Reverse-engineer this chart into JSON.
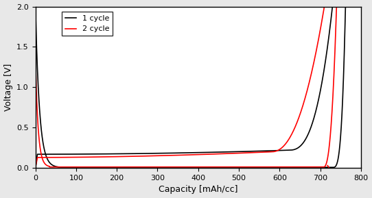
{
  "title": "",
  "xlabel": "Capacity [mAh/cc]",
  "ylabel": "Voltage [V]",
  "xlim": [
    0,
    800
  ],
  "ylim": [
    0,
    2.0
  ],
  "xticks": [
    0,
    100,
    200,
    300,
    400,
    500,
    600,
    700,
    800
  ],
  "yticks": [
    0.0,
    0.5,
    1.0,
    1.5,
    2.0
  ],
  "legend": [
    "1 cycle",
    "2 cycle"
  ],
  "colors": [
    "black",
    "red"
  ],
  "bg_color": "#e8e8e8",
  "plot_bg_color": "#ffffff",
  "legend_fontsize": 8,
  "axis_fontsize": 9,
  "tick_fontsize": 8,
  "linewidth": 1.2
}
